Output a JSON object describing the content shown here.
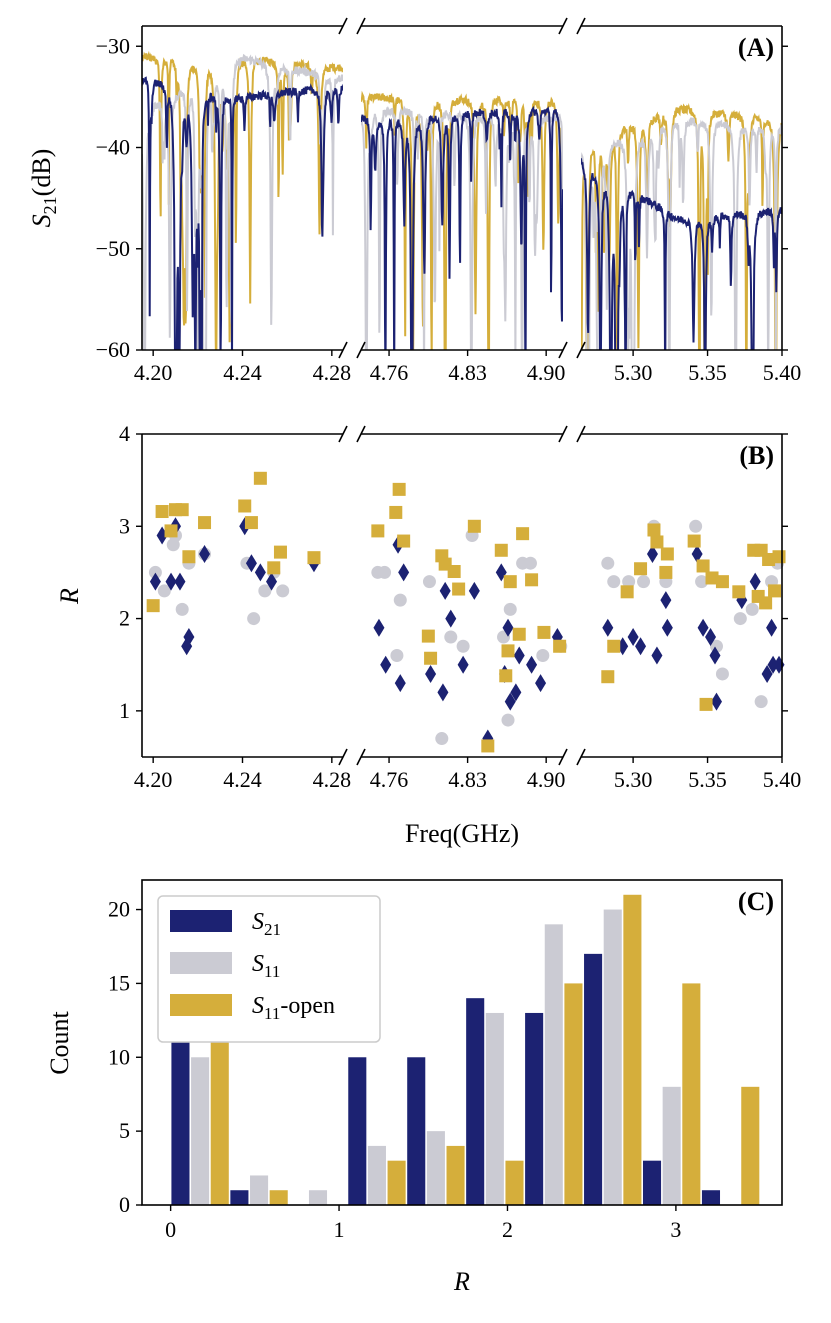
{
  "colors": {
    "S21": "#1c2272",
    "S11": "#cbcbd3",
    "S11open": "#d5ae3b"
  },
  "chart_data": [
    {
      "panel": "A",
      "type": "line",
      "label": "(A)",
      "ylabel_main": "S",
      "ylabel_sub": "21",
      "ylabel_unit": "(dB)",
      "ylim": [
        -60,
        -28
      ],
      "yticks": [
        -30,
        -40,
        -50,
        -60
      ],
      "ytick_labels": [
        "−30",
        "−40",
        "−50",
        "−60"
      ],
      "segments": [
        {
          "xlim": [
            4.195,
            4.285
          ],
          "xticks": [
            4.2,
            4.24,
            4.28
          ],
          "xtick_labels": [
            "4.20",
            "4.24",
            "4.28"
          ]
        },
        {
          "xlim": [
            4.735,
            4.915
          ],
          "xticks": [
            4.76,
            4.83,
            4.9
          ],
          "xtick_labels": [
            "4.76",
            "4.83",
            "4.90"
          ]
        },
        {
          "xlim": [
            5.265,
            5.4
          ],
          "xticks": [
            5.3,
            5.35,
            5.4
          ],
          "xtick_labels": [
            "5.30",
            "5.35",
            "5.40"
          ]
        }
      ],
      "series": [
        {
          "name": "S21",
          "baseline": [
            [
              4.195,
              -33
            ],
            [
              4.24,
              -35
            ],
            [
              4.28,
              -34
            ],
            [
              4.735,
              -37
            ],
            [
              4.915,
              -36
            ],
            [
              5.265,
              -41
            ],
            [
              5.33,
              -47
            ],
            [
              5.4,
              -46
            ]
          ]
        },
        {
          "name": "S11",
          "baseline": [
            [
              4.195,
              -36
            ],
            [
              4.24,
              -31
            ],
            [
              4.28,
              -33
            ],
            [
              4.735,
              -36
            ],
            [
              4.915,
              -37
            ],
            [
              5.265,
              -40
            ],
            [
              5.33,
              -37
            ],
            [
              5.4,
              -38
            ]
          ]
        },
        {
          "name": "S11-open",
          "baseline": [
            [
              4.195,
              -31
            ],
            [
              4.24,
              -31
            ],
            [
              4.28,
              -32
            ],
            [
              4.735,
              -35
            ],
            [
              4.915,
              -35
            ],
            [
              5.265,
              -39
            ],
            [
              5.33,
              -36
            ],
            [
              5.4,
              -37
            ]
          ]
        }
      ]
    },
    {
      "panel": "B",
      "type": "scatter",
      "label": "(B)",
      "ylabel": "R",
      "xlabel": "Freq(GHz)",
      "ylim": [
        0.5,
        4
      ],
      "yticks": [
        1,
        2,
        3,
        4
      ],
      "ytick_labels": [
        "1",
        "2",
        "3",
        "4"
      ],
      "segments": [
        {
          "xlim": [
            4.195,
            4.285
          ],
          "xticks": [
            4.2,
            4.24,
            4.28
          ],
          "xtick_labels": [
            "4.20",
            "4.24",
            "4.28"
          ]
        },
        {
          "xlim": [
            4.735,
            4.915
          ],
          "xticks": [
            4.76,
            4.83,
            4.9
          ],
          "xtick_labels": [
            "4.76",
            "4.83",
            "4.90"
          ]
        },
        {
          "xlim": [
            5.265,
            5.4
          ],
          "xticks": [
            5.3,
            5.35,
            5.4
          ],
          "xtick_labels": [
            "5.30",
            "5.35",
            "5.40"
          ]
        }
      ],
      "series": [
        {
          "name": "S21",
          "marker": "diamond",
          "points": [
            [
              4.201,
              2.4
            ],
            [
              4.204,
              2.9
            ],
            [
              4.208,
              2.4
            ],
            [
              4.21,
              3.0
            ],
            [
              4.212,
              2.4
            ],
            [
              4.215,
              1.7
            ],
            [
              4.216,
              1.8
            ],
            [
              4.223,
              2.7
            ],
            [
              4.241,
              3.0
            ],
            [
              4.244,
              2.6
            ],
            [
              4.248,
              2.5
            ],
            [
              4.253,
              2.4
            ],
            [
              4.272,
              2.6
            ],
            [
              4.751,
              1.9
            ],
            [
              4.757,
              1.5
            ],
            [
              4.768,
              2.8
            ],
            [
              4.77,
              1.3
            ],
            [
              4.773,
              2.5
            ],
            [
              4.797,
              1.4
            ],
            [
              4.808,
              1.2
            ],
            [
              4.81,
              2.3
            ],
            [
              4.815,
              2.0
            ],
            [
              4.826,
              1.5
            ],
            [
              4.836,
              2.3
            ],
            [
              4.848,
              0.7
            ],
            [
              4.86,
              2.5
            ],
            [
              4.863,
              1.4
            ],
            [
              4.866,
              1.9
            ],
            [
              4.868,
              1.1
            ],
            [
              4.873,
              1.2
            ],
            [
              4.876,
              1.6
            ],
            [
              4.887,
              1.5
            ],
            [
              4.895,
              1.3
            ],
            [
              4.91,
              1.8
            ],
            [
              5.283,
              1.9
            ],
            [
              5.293,
              1.7
            ],
            [
              5.3,
              1.8
            ],
            [
              5.305,
              1.7
            ],
            [
              5.313,
              2.7
            ],
            [
              5.316,
              1.6
            ],
            [
              5.322,
              2.2
            ],
            [
              5.323,
              1.9
            ],
            [
              5.343,
              2.7
            ],
            [
              5.347,
              1.9
            ],
            [
              5.352,
              1.8
            ],
            [
              5.355,
              1.6
            ],
            [
              5.356,
              1.1
            ],
            [
              5.373,
              2.2
            ],
            [
              5.382,
              2.4
            ],
            [
              5.39,
              1.4
            ],
            [
              5.393,
              1.9
            ],
            [
              5.394,
              1.5
            ],
            [
              5.398,
              1.5
            ]
          ]
        },
        {
          "name": "S11",
          "marker": "circle",
          "points": [
            [
              4.201,
              2.5
            ],
            [
              4.205,
              2.3
            ],
            [
              4.209,
              2.8
            ],
            [
              4.21,
              2.9
            ],
            [
              4.213,
              2.1
            ],
            [
              4.216,
              2.6
            ],
            [
              4.223,
              2.7
            ],
            [
              4.242,
              2.6
            ],
            [
              4.245,
              2.0
            ],
            [
              4.25,
              2.3
            ],
            [
              4.254,
              2.5
            ],
            [
              4.258,
              2.3
            ],
            [
              4.75,
              2.5
            ],
            [
              4.756,
              2.5
            ],
            [
              4.767,
              1.6
            ],
            [
              4.77,
              2.2
            ],
            [
              4.796,
              2.4
            ],
            [
              4.807,
              0.7
            ],
            [
              4.815,
              1.8
            ],
            [
              4.826,
              1.7
            ],
            [
              4.834,
              2.9
            ],
            [
              4.862,
              1.8
            ],
            [
              4.866,
              0.9
            ],
            [
              4.868,
              2.1
            ],
            [
              4.879,
              2.6
            ],
            [
              4.886,
              2.6
            ],
            [
              4.897,
              1.6
            ],
            [
              4.913,
              1.7
            ],
            [
              5.283,
              2.6
            ],
            [
              5.287,
              2.4
            ],
            [
              5.297,
              2.4
            ],
            [
              5.307,
              2.4
            ],
            [
              5.314,
              3.0
            ],
            [
              5.322,
              2.4
            ],
            [
              5.342,
              3.0
            ],
            [
              5.346,
              2.4
            ],
            [
              5.356,
              1.7
            ],
            [
              5.36,
              1.4
            ],
            [
              5.372,
              2.0
            ],
            [
              5.38,
              2.1
            ],
            [
              5.386,
              1.1
            ],
            [
              5.393,
              2.4
            ],
            [
              5.397,
              2.6
            ]
          ]
        },
        {
          "name": "S11-open",
          "marker": "square",
          "points": [
            [
              4.2,
              2.14
            ],
            [
              4.204,
              3.16
            ],
            [
              4.208,
              2.95
            ],
            [
              4.21,
              3.18
            ],
            [
              4.213,
              3.18
            ],
            [
              4.216,
              2.67
            ],
            [
              4.223,
              3.04
            ],
            [
              4.241,
              3.22
            ],
            [
              4.244,
              3.04
            ],
            [
              4.248,
              3.52
            ],
            [
              4.254,
              2.55
            ],
            [
              4.257,
              2.72
            ],
            [
              4.272,
              2.66
            ],
            [
              4.75,
              2.95
            ],
            [
              4.766,
              3.15
            ],
            [
              4.769,
              3.4
            ],
            [
              4.773,
              2.84
            ],
            [
              4.795,
              1.81
            ],
            [
              4.797,
              1.57
            ],
            [
              4.807,
              2.68
            ],
            [
              4.81,
              2.59
            ],
            [
              4.818,
              2.51
            ],
            [
              4.822,
              2.32
            ],
            [
              4.836,
              3.0
            ],
            [
              4.848,
              0.62
            ],
            [
              4.86,
              2.74
            ],
            [
              4.864,
              1.38
            ],
            [
              4.866,
              1.65
            ],
            [
              4.868,
              2.4
            ],
            [
              4.876,
              1.83
            ],
            [
              4.879,
              2.92
            ],
            [
              4.887,
              2.42
            ],
            [
              4.898,
              1.85
            ],
            [
              4.912,
              1.7
            ],
            [
              5.283,
              1.37
            ],
            [
              5.287,
              1.7
            ],
            [
              5.296,
              2.29
            ],
            [
              5.305,
              2.54
            ],
            [
              5.314,
              2.96
            ],
            [
              5.316,
              2.83
            ],
            [
              5.322,
              2.5
            ],
            [
              5.323,
              2.7
            ],
            [
              5.341,
              2.84
            ],
            [
              5.347,
              2.57
            ],
            [
              5.349,
              1.07
            ],
            [
              5.353,
              2.44
            ],
            [
              5.36,
              2.4
            ],
            [
              5.371,
              2.29
            ],
            [
              5.381,
              2.74
            ],
            [
              5.384,
              2.24
            ],
            [
              5.386,
              2.74
            ],
            [
              5.389,
              2.17
            ],
            [
              5.391,
              2.64
            ],
            [
              5.395,
              2.3
            ],
            [
              5.398,
              2.67
            ]
          ]
        }
      ]
    },
    {
      "panel": "C",
      "type": "bar",
      "label": "(C)",
      "ylabel": "Count",
      "xlabel": "R",
      "xlim": [
        -0.17,
        3.63
      ],
      "ylim": [
        0,
        22
      ],
      "xticks": [
        0,
        1,
        2,
        3
      ],
      "xtick_labels": [
        "0",
        "1",
        "2",
        "3"
      ],
      "yticks": [
        0,
        5,
        10,
        15,
        20
      ],
      "ytick_labels": [
        "0",
        "5",
        "10",
        "15",
        "20"
      ],
      "bin_centers": [
        0.175,
        0.525,
        0.875,
        1.225,
        1.575,
        1.925,
        2.275,
        2.625,
        2.975,
        3.325
      ],
      "bin_width": 0.35,
      "series": [
        {
          "name": "S21",
          "legend_main": "S",
          "legend_sub": "21",
          "legend_tail": "",
          "values": [
            11,
            1,
            0,
            10,
            10,
            14,
            13,
            17,
            3,
            1
          ]
        },
        {
          "name": "S11",
          "legend_main": "S",
          "legend_sub": "11",
          "legend_tail": "",
          "values": [
            10,
            2,
            1,
            4,
            5,
            13,
            19,
            20,
            8,
            0
          ]
        },
        {
          "name": "S11-open",
          "legend_main": "S",
          "legend_sub": "11",
          "legend_tail": "-open",
          "values": [
            11,
            1,
            0,
            3,
            4,
            3,
            15,
            21,
            15,
            8
          ]
        }
      ]
    }
  ]
}
